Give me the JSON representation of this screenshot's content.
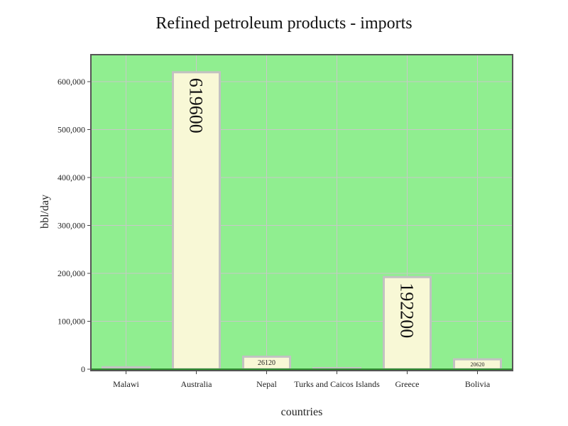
{
  "chart_data": {
    "type": "bar",
    "title": "Refined petroleum products - imports",
    "xlabel": "countries",
    "ylabel": "bbl/day",
    "categories": [
      "Malawi",
      "Australia",
      "Nepal",
      "Turks and Caicos Islands",
      "Greece",
      "Bolivia"
    ],
    "values": [
      4000,
      619600,
      26120,
      150,
      192200,
      20620
    ],
    "data_labels": [
      "",
      "619600",
      "26120",
      "",
      "192200",
      "20620"
    ],
    "ylim": [
      0,
      650000
    ],
    "yticks": [
      0,
      100000,
      200000,
      300000,
      400000,
      500000,
      600000
    ],
    "ytick_labels": [
      "0",
      "100,000",
      "200,000",
      "300,000",
      "400,000",
      "500,000",
      "600,000"
    ],
    "grid": true,
    "colors": {
      "plot_bg": "#90ee90",
      "bar_fill": "#f8f8d6",
      "bar_stroke": "#c2c2c2",
      "grid": "#c8c8c8",
      "frame": "#555555",
      "zero_line": "#2e8b2e"
    }
  }
}
